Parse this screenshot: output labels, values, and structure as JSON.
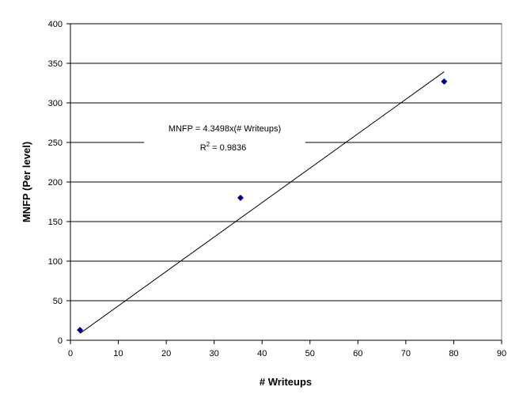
{
  "chart_data": {
    "type": "scatter",
    "title": "",
    "xlabel": "# Writeups",
    "ylabel": "MNFP (Per level)",
    "xlim": [
      0,
      90
    ],
    "ylim": [
      0,
      400
    ],
    "x_ticks": [
      "0",
      "10",
      "20",
      "30",
      "40",
      "50",
      "60",
      "70",
      "80",
      "90"
    ],
    "y_ticks": [
      "0",
      "50",
      "100",
      "150",
      "200",
      "250",
      "300",
      "350",
      "400"
    ],
    "grid": "horizontal",
    "legend": "none",
    "series": [
      {
        "points": [
          {
            "x": 2,
            "y": 13
          },
          {
            "x": 35.5,
            "y": 180
          },
          {
            "x": 78,
            "y": 327
          }
        ],
        "color": "#000080",
        "marker": "diamond"
      }
    ],
    "trendline": {
      "slope": 4.3498,
      "x_range": [
        2,
        78
      ],
      "color": "#000000"
    },
    "annotation": {
      "equation": "MNFP = 4.3498x(# Writeups)",
      "r2_label": "R",
      "r2_superscript": "2",
      "r2_value": " = 0.9836"
    },
    "colors": {
      "plot_background": "#ffffff",
      "axis": "#000000",
      "gridline": "#000000"
    }
  }
}
